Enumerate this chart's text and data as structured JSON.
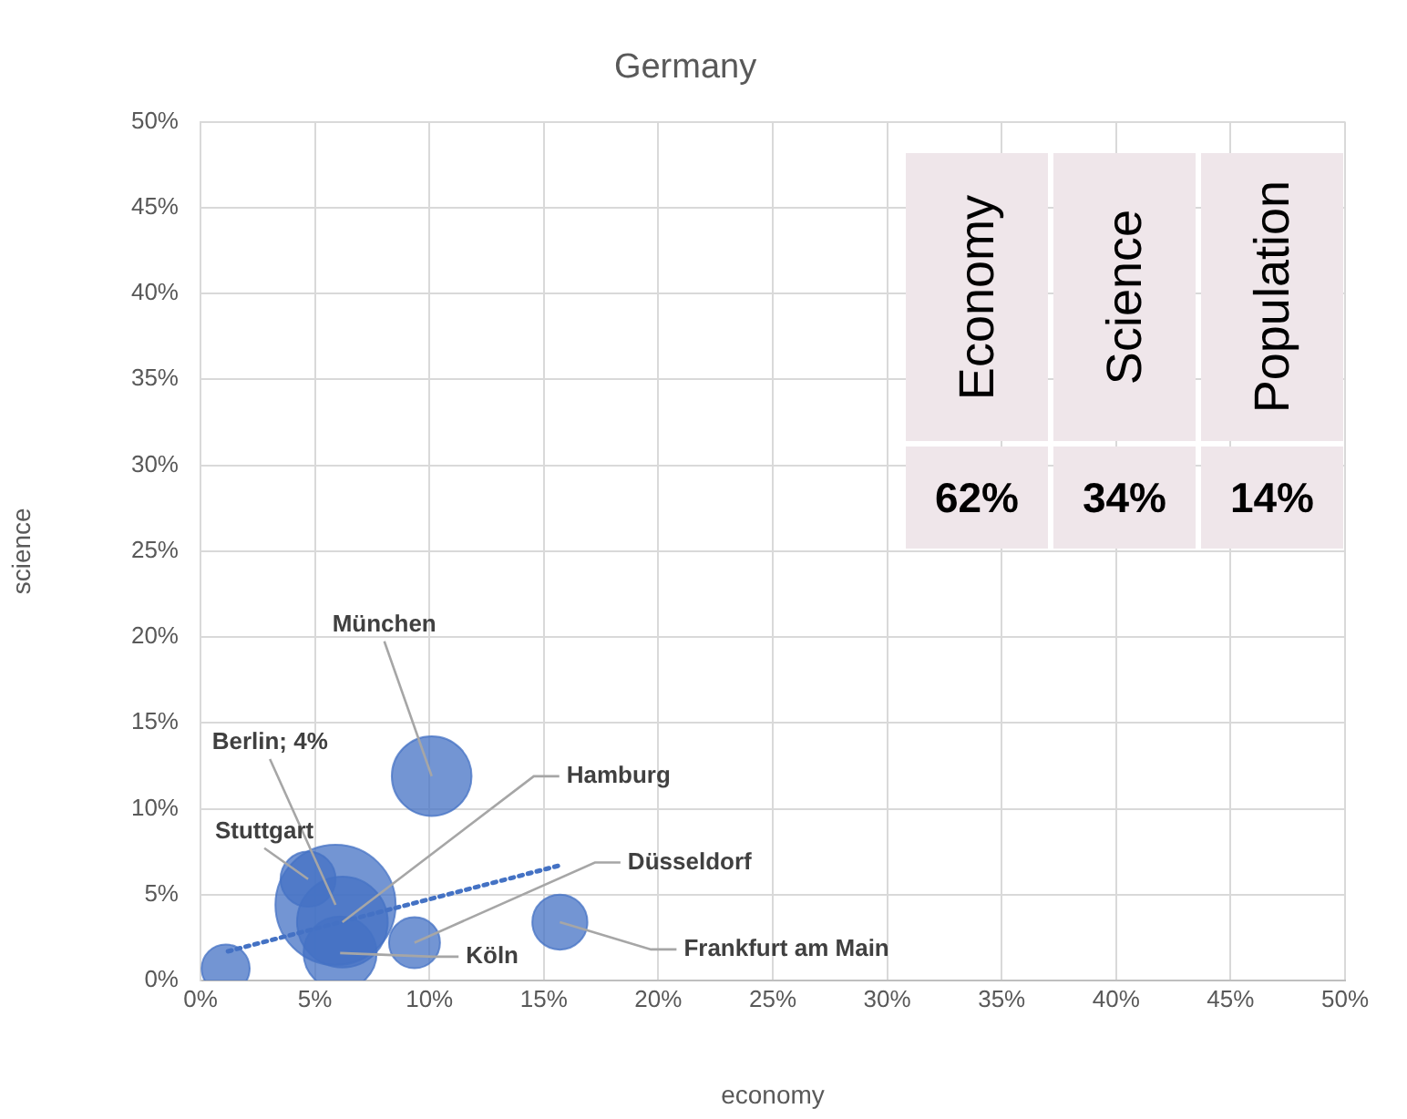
{
  "chart_data": [
    {
      "type": "bubble",
      "title": "Germany",
      "xlabel": "economy",
      "ylabel": "science",
      "xlim": [
        0,
        50
      ],
      "ylim": [
        0,
        50
      ],
      "xticks": [
        {
          "value": 0,
          "label": "0%"
        },
        {
          "value": 5,
          "label": "5%"
        },
        {
          "value": 10,
          "label": "10%"
        },
        {
          "value": 15,
          "label": "15%"
        },
        {
          "value": 20,
          "label": "20%"
        },
        {
          "value": 25,
          "label": "25%"
        },
        {
          "value": 30,
          "label": "30%"
        },
        {
          "value": 35,
          "label": "35%"
        },
        {
          "value": 40,
          "label": "40%"
        },
        {
          "value": 45,
          "label": "45%"
        },
        {
          "value": 50,
          "label": "50%"
        }
      ],
      "yticks": [
        {
          "value": 0,
          "label": "0%"
        },
        {
          "value": 5,
          "label": "5%"
        },
        {
          "value": 10,
          "label": "10%"
        },
        {
          "value": 15,
          "label": "15%"
        },
        {
          "value": 20,
          "label": "20%"
        },
        {
          "value": 25,
          "label": "25%"
        },
        {
          "value": 30,
          "label": "30%"
        },
        {
          "value": 35,
          "label": "35%"
        },
        {
          "value": 40,
          "label": "40%"
        },
        {
          "value": 45,
          "label": "45%"
        },
        {
          "value": 50,
          "label": "50%"
        }
      ],
      "grid": true,
      "legend": false,
      "series": [
        {
          "name": "Berlin; 4%",
          "color": "#4472c4",
          "x": [
            5.9
          ],
          "values": [
            4.4
          ],
          "sizes": [
            1
          ]
        },
        {
          "name": "Hamburg",
          "color": "#4472c4",
          "x": [
            6.2
          ],
          "values": [
            3.4
          ],
          "sizes": [
            0.57
          ]
        },
        {
          "name": "München",
          "color": "#4472c4",
          "x": [
            10.1
          ],
          "values": [
            11.9
          ],
          "sizes": [
            0.44
          ]
        },
        {
          "name": "Köln",
          "color": "#4472c4",
          "x": [
            6.1
          ],
          "values": [
            1.6
          ],
          "sizes": [
            0.37
          ]
        },
        {
          "name": "Frankfurt am Main",
          "color": "#4472c4",
          "x": [
            15.7
          ],
          "values": [
            3.4
          ],
          "sizes": [
            0.21
          ]
        },
        {
          "name": "Stuttgart",
          "color": "#4472c4",
          "x": [
            4.7
          ],
          "values": [
            5.9
          ],
          "sizes": [
            0.21
          ]
        },
        {
          "name": "Düsseldorf",
          "color": "#4472c4",
          "x": [
            9.35
          ],
          "values": [
            2.2
          ],
          "sizes": [
            0.18
          ]
        },
        {
          "color": "#4472c4",
          "x": [
            1.1
          ],
          "values": [
            0.7
          ],
          "sizes": [
            0.16
          ]
        },
        {
          "type": "line",
          "color": "#4472c4",
          "x": [
            1.2,
            15.7
          ],
          "values": [
            1.7,
            6.7
          ],
          "line_style": "dotted",
          "marker": "none"
        }
      ]
    },
    {
      "type": "other",
      "categories": [
        "Economy",
        "Science",
        "Population"
      ],
      "value_labels": [
        "62%",
        "34%",
        "14%"
      ]
    }
  ]
}
